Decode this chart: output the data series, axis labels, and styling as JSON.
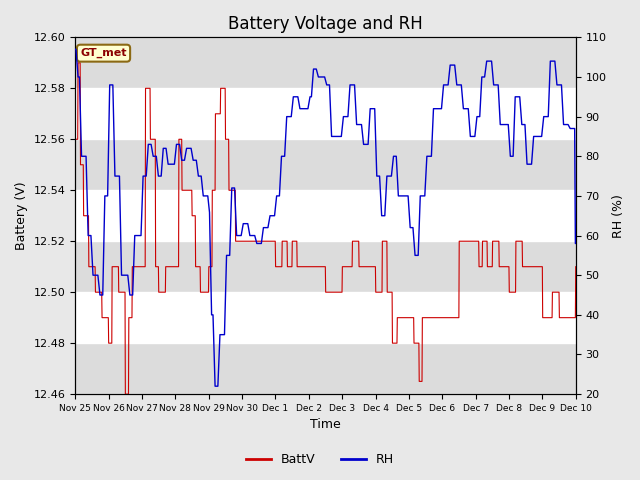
{
  "title": "Battery Voltage and RH",
  "xlabel": "Time",
  "ylabel_left": "Battery (V)",
  "ylabel_right": "RH (%)",
  "left_ylim": [
    12.46,
    12.6
  ],
  "right_ylim": [
    20,
    110
  ],
  "left_yticks": [
    12.46,
    12.48,
    12.5,
    12.52,
    12.54,
    12.56,
    12.58,
    12.6
  ],
  "right_yticks": [
    20,
    30,
    40,
    50,
    60,
    70,
    80,
    90,
    100,
    110
  ],
  "xtick_labels": [
    "Nov 25",
    "Nov 26",
    "Nov 27",
    "Nov 28",
    "Nov 29",
    "Nov 30",
    "Dec 1",
    "Dec 2",
    "Dec 3",
    "Dec 4",
    "Dec 5",
    "Dec 6",
    "Dec 7",
    "Dec 8",
    "Dec 9",
    "Dec 10"
  ],
  "annotation_text": "GT_met",
  "annotation_color": "#8B0000",
  "annotation_bg": "#FFFFD0",
  "annotation_edge": "#8B6914",
  "batt_color": "#CC0000",
  "rh_color": "#0000CC",
  "legend_batt": "BattV",
  "legend_rh": "RH",
  "bg_color": "#E8E8E8",
  "plot_bg": "#FFFFFF",
  "stripe_color": "#DCDCDC",
  "title_fontsize": 12,
  "label_fontsize": 9,
  "tick_fontsize": 8,
  "n_days": 15
}
